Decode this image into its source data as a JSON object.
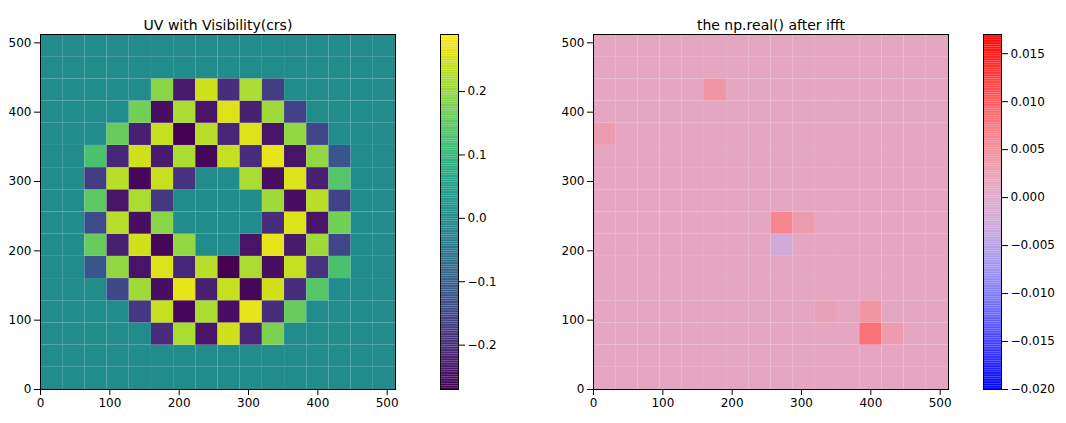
{
  "chart_data": [
    {
      "type": "heatmap",
      "title": "UV with Visibility(crs)",
      "color": "viridis",
      "xlim": [
        0,
        512
      ],
      "ylim": [
        0,
        512
      ],
      "xticks": [
        0,
        100,
        200,
        300,
        400,
        500
      ],
      "yticks": [
        0,
        100,
        200,
        300,
        400,
        500
      ],
      "cells": [
        [
          0,
          0,
          0,
          0,
          0,
          0,
          0,
          0,
          0,
          0,
          0,
          0,
          0,
          0,
          0,
          0
        ],
        [
          0,
          0,
          0,
          0,
          0,
          0,
          0,
          0,
          0,
          0,
          0,
          0,
          0,
          0,
          0,
          0
        ],
        [
          0,
          0,
          0,
          0,
          0,
          -0.2,
          0.22,
          -0.24,
          0.25,
          -0.21,
          0.18,
          0,
          0,
          0,
          0,
          0
        ],
        [
          0,
          0,
          0,
          0,
          -0.18,
          0.24,
          -0.26,
          0.22,
          -0.25,
          0.27,
          -0.2,
          0.16,
          0,
          0,
          0,
          0
        ],
        [
          0,
          0,
          0,
          -0.15,
          0.21,
          -0.25,
          0.27,
          -0.22,
          0.24,
          -0.26,
          0.25,
          -0.2,
          0.14,
          0,
          0,
          0
        ],
        [
          0,
          0,
          -0.12,
          0.2,
          -0.24,
          0.26,
          -0.21,
          0.23,
          -0.27,
          0.22,
          -0.25,
          0.24,
          -0.19,
          0.13,
          0,
          0
        ],
        [
          0,
          0,
          0.16,
          -0.22,
          0.25,
          -0.26,
          0.2,
          0,
          0,
          -0.24,
          0.27,
          -0.23,
          0.21,
          -0.15,
          0,
          0
        ],
        [
          0,
          0,
          -0.14,
          0.23,
          -0.25,
          0.19,
          0,
          0,
          0,
          0,
          -0.2,
          0.26,
          -0.24,
          0.17,
          0,
          0
        ],
        [
          0,
          0,
          0.15,
          -0.24,
          0.22,
          -0.18,
          0,
          0,
          0,
          0,
          0.21,
          -0.25,
          0.23,
          -0.16,
          0,
          0
        ],
        [
          0,
          0,
          -0.17,
          0.23,
          -0.26,
          0.24,
          -0.19,
          0,
          0,
          0.22,
          -0.25,
          0.26,
          -0.22,
          0.14,
          0,
          0
        ],
        [
          0,
          0,
          0.13,
          -0.21,
          0.25,
          -0.23,
          0.22,
          -0.26,
          0.24,
          -0.2,
          0.27,
          -0.24,
          0.2,
          -0.12,
          0,
          0
        ],
        [
          0,
          0,
          0,
          0.16,
          -0.22,
          0.24,
          -0.27,
          0.23,
          -0.21,
          0.26,
          -0.24,
          0.2,
          -0.15,
          0,
          0,
          0
        ],
        [
          0,
          0,
          0,
          0,
          0.17,
          -0.25,
          0.22,
          -0.24,
          0.26,
          -0.22,
          0.21,
          -0.16,
          0,
          0,
          0,
          0
        ],
        [
          0,
          0,
          0,
          0,
          0,
          0.19,
          -0.23,
          0.25,
          -0.2,
          0.22,
          -0.17,
          0,
          0,
          0,
          0,
          0
        ],
        [
          0,
          0,
          0,
          0,
          0,
          0,
          0,
          0,
          0,
          0,
          0,
          0,
          0,
          0,
          0,
          0
        ],
        [
          0,
          0,
          0,
          0,
          0,
          0,
          0,
          0,
          0,
          0,
          0,
          0,
          0,
          0,
          0,
          0
        ]
      ],
      "colorbar_range": [
        -0.27,
        0.29
      ],
      "colorbar_ticks": [
        {
          "value": -0.2,
          "label": "−0.2"
        },
        {
          "value": -0.1,
          "label": "−0.1"
        },
        {
          "value": 0,
          "label": "0.0"
        },
        0.1,
        0.2
      ]
    },
    {
      "type": "heatmap",
      "title": "the np.real() after ifft",
      "color": "bwr",
      "xlim": [
        0,
        512
      ],
      "ylim": [
        0,
        512
      ],
      "xticks": [
        0,
        100,
        200,
        300,
        400,
        500
      ],
      "yticks": [
        0,
        100,
        200,
        300,
        400,
        500
      ],
      "cells": [
        [
          0.001,
          0.001,
          0.001,
          0.001,
          0.001,
          0.001,
          0.001,
          0.001,
          0.001,
          0.001,
          0.001,
          0.001,
          0.001,
          0.001,
          0.001,
          0.001
        ],
        [
          0.001,
          0.001,
          0.001,
          0.001,
          0.001,
          0.001,
          0.001,
          0.001,
          0.001,
          0.001,
          0.001,
          0.001,
          0.001,
          0.001,
          0.001,
          0.001
        ],
        [
          0.001,
          0.001,
          0.001,
          0.001,
          0.001,
          0.001,
          0.001,
          0.001,
          0.001,
          0.001,
          0.001,
          0.001,
          0.008,
          0.003,
          0.001,
          0.001
        ],
        [
          0.001,
          0.001,
          0.001,
          0.001,
          0.001,
          0.001,
          0.001,
          0.001,
          0.001,
          0.001,
          0.002,
          0.001,
          0.004,
          0.001,
          0.001,
          0.001
        ],
        [
          0.001,
          0.001,
          0.001,
          0.001,
          0.001,
          0.001,
          0.001,
          0.001,
          0.001,
          0.001,
          0.001,
          0.001,
          0.001,
          0.001,
          0.001,
          0.001
        ],
        [
          0.001,
          0.001,
          0.001,
          0.001,
          0.001,
          0.001,
          0.001,
          0.001,
          0.001,
          0.001,
          0.001,
          0.001,
          0.001,
          0.001,
          0.001,
          0.001
        ],
        [
          0.001,
          0.001,
          0.001,
          0.001,
          0.001,
          0.001,
          0.001,
          0.001,
          -0.002,
          0.001,
          0.001,
          0.001,
          0.001,
          0.001,
          0.001,
          0.001
        ],
        [
          0.001,
          0.001,
          0.001,
          0.001,
          0.001,
          0.001,
          0.001,
          0.001,
          0.006,
          0.003,
          0.001,
          0.001,
          0.001,
          0.001,
          0.001,
          0.001
        ],
        [
          0.001,
          0.001,
          0.001,
          0.001,
          0.001,
          0.001,
          0.001,
          0.001,
          0.001,
          0.001,
          0.001,
          0.001,
          0.001,
          0.001,
          0.001,
          0.001
        ],
        [
          0.001,
          0.001,
          0.001,
          0.001,
          0.001,
          0.001,
          0.001,
          0.001,
          0.001,
          0.001,
          0.001,
          0.001,
          0.001,
          0.001,
          0.001,
          0.001
        ],
        [
          0.001,
          0.001,
          0.001,
          0.001,
          0.001,
          0.001,
          0.001,
          0.001,
          0.001,
          0.001,
          0.001,
          0.001,
          0.001,
          0.001,
          0.001,
          0.001
        ],
        [
          0.003,
          0.001,
          0.001,
          0.001,
          0.001,
          0.001,
          0.001,
          0.001,
          0.001,
          0.001,
          0.001,
          0.001,
          0.001,
          0.001,
          0.001,
          0.001
        ],
        [
          0.001,
          0.001,
          0.001,
          0.001,
          0.001,
          0.001,
          0.001,
          0.001,
          0.001,
          0.001,
          0.001,
          0.001,
          0.001,
          0.001,
          0.001,
          0.001
        ],
        [
          0.001,
          0.001,
          0.001,
          0.001,
          0.001,
          0.004,
          0.001,
          0.001,
          0.001,
          0.001,
          0.001,
          0.001,
          0.001,
          0.001,
          0.001,
          0.001
        ],
        [
          0.001,
          0.001,
          0.001,
          0.001,
          0.001,
          0.001,
          0.001,
          0.001,
          0.001,
          0.001,
          0.001,
          0.001,
          0.001,
          0.001,
          0.001,
          0.001
        ],
        [
          0.001,
          0.001,
          0.001,
          0.001,
          0.001,
          0.001,
          0.001,
          0.001,
          0.001,
          0.001,
          0.001,
          0.001,
          0.001,
          0.001,
          0.001,
          0.001
        ]
      ],
      "colorbar_range": [
        -0.02,
        0.017
      ],
      "colorbar_ticks": [
        {
          "value": -0.02,
          "label": "−0.020"
        },
        {
          "value": -0.015,
          "label": "−0.015"
        },
        {
          "value": -0.01,
          "label": "−0.010"
        },
        {
          "value": -0.005,
          "label": "−0.005"
        },
        {
          "value": 0,
          "label": "0.000"
        },
        {
          "value": 0.005,
          "label": "0.005"
        },
        {
          "value": 0.01,
          "label": "0.010"
        },
        {
          "value": 0.015,
          "label": "0.015"
        }
      ]
    }
  ]
}
